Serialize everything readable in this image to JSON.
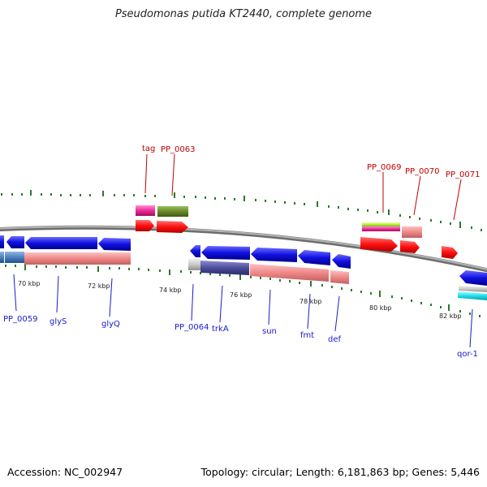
{
  "title": "Pseudomonas putida KT2440, complete genome",
  "footer": {
    "accession": "Accession: NC_002947",
    "summary": "Topology: circular; Length: 6,181,863 bp; Genes: 5,446"
  },
  "colors": {
    "backbone": "#8c8c8c",
    "gene_blue": "#1010e0",
    "rna_red": "#ff1010",
    "cds_salmon": "#f08888",
    "tick_green": "#2a7a2a",
    "label_red": "#c00000",
    "label_blue": "#1a1acc"
  },
  "ticks": [
    "70 kbp",
    "72 kbp",
    "74 kbp",
    "76 kbp",
    "78 kbp",
    "80 kbp",
    "82 kbp"
  ],
  "top_labels": [
    "tag",
    "PP_0063",
    "PP_0069",
    "PP_0070",
    "PP_0071"
  ],
  "bottom_labels": [
    "PP_0059",
    "glyS",
    "glyQ",
    "PP_0064",
    "trkA",
    "sun",
    "fmt",
    "def",
    "qor-1"
  ]
}
